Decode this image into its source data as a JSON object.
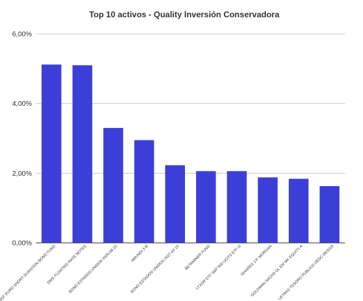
{
  "chart_data": {
    "type": "bar",
    "title": "Top 10 activos - Quality Inversión Conservadora",
    "xlabel": "",
    "ylabel": "",
    "categories": [
      "BGF EURO SHORT DURATION BOND FUND",
      "DWS FLOATING RATE NOTES",
      "BONO ESTADOS UNIDOS 2026-08-15",
      "AMUNDI 3 M",
      "BONO ESTADOS UNIDOS 2027-02-15",
      "BETAMINER FUND",
      "LYXOR ETF S&P 500 UCITS ETF-D",
      "ISHARES J.P. MORGAN",
      "GOLDMAN SACHS GL EM MK EQUITY A",
      "LETRAS TESORO PUBLICO DESC 08/2018"
    ],
    "values": [
      5.12,
      5.1,
      3.3,
      2.95,
      2.23,
      2.06,
      2.06,
      1.88,
      1.84,
      1.63
    ],
    "ylim": [
      0,
      6
    ],
    "yticks": [
      "0,00%",
      "2,00%",
      "4,00%",
      "6,00%"
    ],
    "ytick_values": [
      0,
      2,
      4,
      6
    ],
    "grid": true,
    "bar_color": "#3b3fd8",
    "legend": "none"
  }
}
